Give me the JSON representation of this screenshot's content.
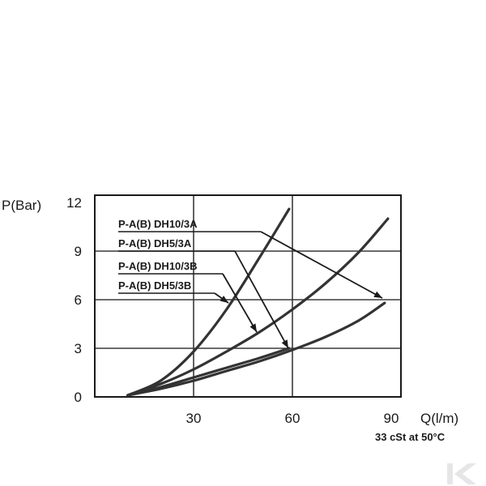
{
  "chart_data": {
    "type": "line",
    "ylabel": "P(Bar)",
    "xlabel": "Q(l/m)",
    "annotation": "33 cSt at 50°C",
    "xlim": [
      0,
      90
    ],
    "ylim": [
      0,
      12
    ],
    "xticks": [
      "30",
      "60",
      "90"
    ],
    "yticks": [
      "0",
      "3",
      "6",
      "9",
      "12"
    ],
    "grid": true,
    "series": [
      {
        "name": "P-A(B) DH10/3A",
        "x": [
          10,
          20,
          30,
          40,
          50,
          59
        ],
        "y": [
          0.1,
          1.0,
          2.8,
          5.4,
          8.6,
          11.6
        ]
      },
      {
        "name": "P-A(B) DH5/3A",
        "x": [
          10,
          20,
          30,
          40,
          50,
          60,
          70,
          80,
          89
        ],
        "y": [
          0.1,
          0.8,
          1.7,
          2.8,
          4.0,
          5.4,
          7.0,
          8.9,
          11.0
        ]
      },
      {
        "name": "P-A(B) DH10/3B",
        "x": [
          10,
          20,
          30,
          40,
          50,
          59
        ],
        "y": [
          0.1,
          0.6,
          1.2,
          1.8,
          2.4,
          3.0
        ]
      },
      {
        "name": "P-A(B) DH5/3B",
        "x": [
          10,
          20,
          30,
          40,
          50,
          60,
          70,
          80,
          88
        ],
        "y": [
          0.1,
          0.5,
          1.0,
          1.6,
          2.2,
          2.9,
          3.7,
          4.7,
          5.8
        ]
      }
    ]
  },
  "watermark": {
    "icon": "brand-logo-k-icon",
    "color": "#e6e6e6"
  }
}
